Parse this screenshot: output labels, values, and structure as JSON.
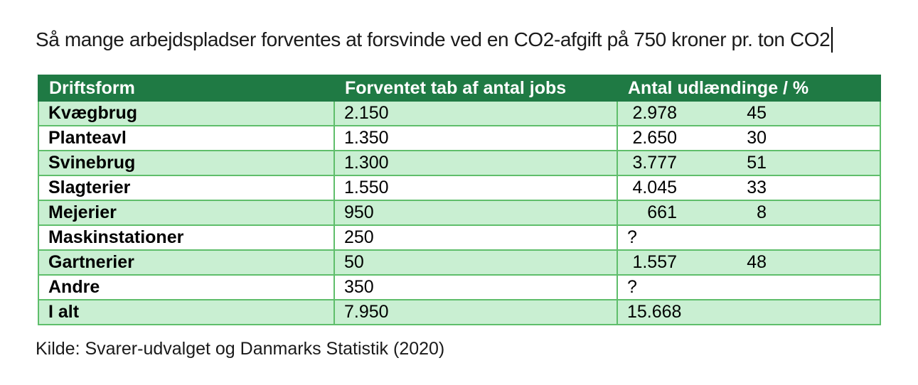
{
  "title": "Så mange arbejdspladser forventes at forsvinde ved en CO2-afgift på 750 kroner pr. ton CO2",
  "source": "Kilde: Svarer-udvalget og Danmarks Statistik (2020)",
  "table": {
    "headers": [
      "Driftsform",
      "Forventet tab af antal jobs",
      "Antal udlændinge / %"
    ],
    "rows": [
      {
        "driftsform": "Kvægbrug",
        "tab": "2.150",
        "antal": "2.978",
        "pct": "45"
      },
      {
        "driftsform": "Planteavl",
        "tab": "1.350",
        "antal": "2.650",
        "pct": "30"
      },
      {
        "driftsform": "Svinebrug",
        "tab": "1.300",
        "antal": "3.777",
        "pct": "51"
      },
      {
        "driftsform": "Slagterier",
        "tab": "1.550",
        "antal": "4.045",
        "pct": "33"
      },
      {
        "driftsform": "Mejerier",
        "tab": "950",
        "antal": "661",
        "pct": "8"
      },
      {
        "driftsform": "Maskinstationer",
        "tab": "250",
        "antal": "?",
        "pct": ""
      },
      {
        "driftsform": "Gartnerier",
        "tab": "50",
        "antal": "1.557",
        "pct": "48"
      },
      {
        "driftsform": "Andre",
        "tab": "350",
        "antal": "?",
        "pct": ""
      },
      {
        "driftsform": "I alt",
        "tab": "7.950",
        "antal": "15.668",
        "pct": ""
      }
    ]
  },
  "colors": {
    "header_bg": "#1F7A44",
    "header_text": "#FFFFFF",
    "row_green": "#C9EFD2",
    "border": "#5FBE6B",
    "text": "#000000"
  }
}
